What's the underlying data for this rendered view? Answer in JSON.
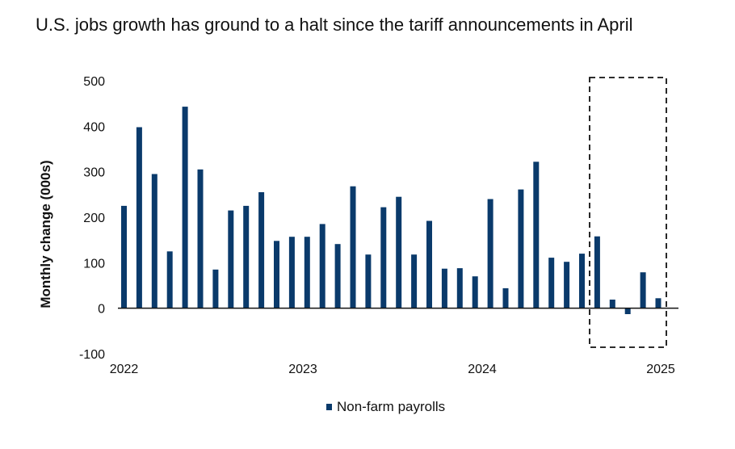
{
  "chart_data": {
    "type": "bar",
    "title": "U.S. jobs growth has ground to a halt since the tariff announcements in April",
    "ylabel": "Monthly change (000s)",
    "xlabel": "",
    "ylim": [
      -100,
      500
    ],
    "yticks": [
      500,
      400,
      300,
      200,
      100,
      0,
      -100
    ],
    "xtick_labels": [
      "2022",
      "2023",
      "2024",
      "2025"
    ],
    "bar_color": "#0a3a6b",
    "highlight_box": "dashed rectangle around the last 5 months",
    "series": [
      {
        "name": "Non-farm payrolls",
        "values": [
          225,
          398,
          295,
          125,
          443,
          305,
          85,
          215,
          225,
          255,
          148,
          157,
          157,
          185,
          141,
          268,
          118,
          222,
          245,
          118,
          192,
          87,
          88,
          70,
          240,
          44,
          261,
          322,
          111,
          102,
          120,
          158,
          19,
          -13,
          79,
          22
        ]
      }
    ]
  },
  "legend": {
    "label": "Non-farm payrolls"
  }
}
